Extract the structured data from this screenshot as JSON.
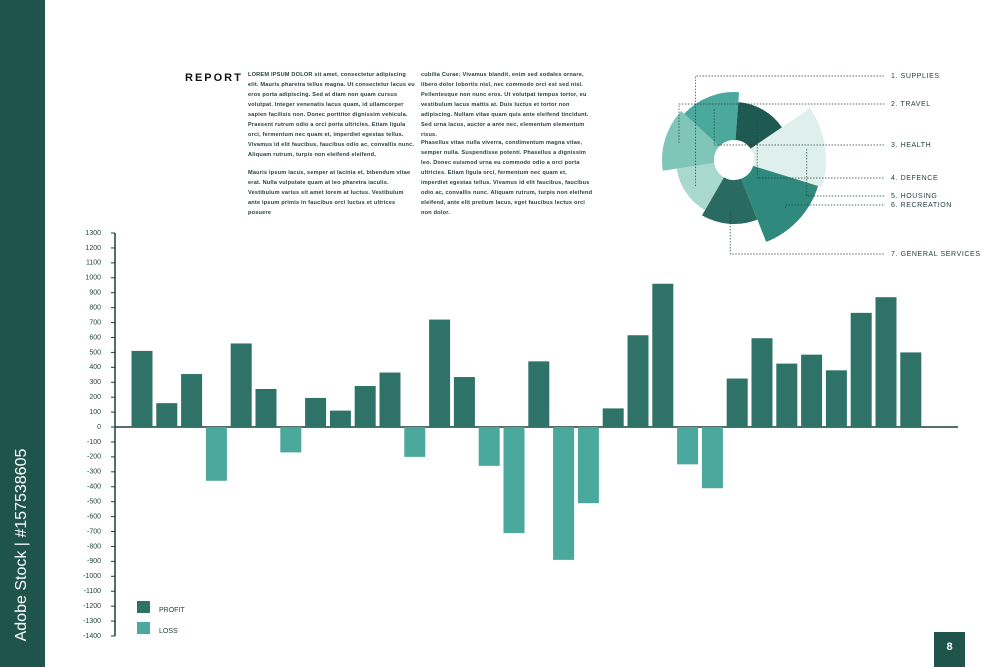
{
  "sidebar_text": "Adobe Stock | #157538605",
  "page_number": "8",
  "report": {
    "title": "REPORT",
    "paragraphs": [
      "LOREM IPSUM DOLOR sit amet, consectetur adipiscing elit. Mauris pharetra tellus magna. Ut consectetur lacus eu eros porta adipiscing. Sed at diam non quam cursus volutpat. Integer venenatis lacus quam, id ullamcorper sapien facilisis non. Donec porttitor dignissim vehicula. Praesent rutrum odio a orci porta ultricies. Etiam ligula orci, fermentum nec quam et, imperdiet egestas tellus. Vivamus id elit faucibus, faucibus odio ac, convallis nunc. Aliquam rutrum, turpis non eleifend eleifend,",
      "Mauris ipsum lacus, semper at lacinia et, bibendum vitae erat. Nulla vulputate quam at leo pharetra iaculis. Vestibulum varius sit amet lorem at luctus. Vestibulum ante ipsum primis in faucibus orci luctus et ultrices posuere",
      "cubilia Curae; Vivamus blandit, enim sed sodales ornare, libero dolor lobortis nisl, nec commodo orci est sed nisl. Pellentesque non nunc eros. Ut volutpat tempus tortor, eu vestibulum lacus mattis at. Duis luctus et tortor non adipiscing. Nullam vitae quam quis ante eleifend tincidunt. Sed urna lacus, auctor a ante nec, elementum elementum risus.",
      "Phasellus vitae nulla viverra, condimentum magna vitae, semper nulla. Suspendisse potenti. Phasellus a dignissim leo. Donec euismod urna eu commodo odio a orci porta ultricies. Etiam ligula orci, fermentum nec quam et, imperdiet egestas tellus. Vivamus id elit faucibus, faucibus odio ac, convallis nunc. Aliquam rutrum, turpis non eleifend eleifend, ante elit pretium lacus, eget faucibus lectus orci non dolor."
    ]
  },
  "chart_data": [
    {
      "type": "bar",
      "categories": [
        null,
        null,
        null,
        null,
        null,
        null,
        null,
        null,
        null,
        null,
        null,
        null,
        null,
        null,
        null,
        null,
        null,
        null,
        null,
        null,
        null,
        null,
        null,
        null,
        null,
        null,
        null,
        null,
        null,
        null,
        null,
        null
      ],
      "series": [
        {
          "name": "PROFIT",
          "color": "#2f7268",
          "values": [
            510,
            160,
            355,
            null,
            560,
            255,
            null,
            195,
            110,
            275,
            365,
            null,
            720,
            335,
            null,
            null,
            440,
            null,
            null,
            125,
            615,
            960,
            null,
            null,
            325,
            595,
            425,
            485,
            380,
            765,
            870,
            500
          ]
        },
        {
          "name": "LOSS",
          "color": "#4aa89c",
          "values": [
            null,
            null,
            null,
            -360,
            null,
            null,
            -170,
            null,
            null,
            null,
            null,
            -200,
            null,
            null,
            -260,
            -710,
            null,
            -890,
            -510,
            null,
            null,
            null,
            -250,
            -410,
            null,
            null,
            null,
            null,
            null,
            null,
            null,
            null
          ]
        }
      ],
      "ylim": [
        -1400,
        1300
      ],
      "yticks": [
        -1400,
        -1300,
        -1200,
        -1100,
        -1000,
        -900,
        -800,
        -700,
        -600,
        -500,
        -400,
        -300,
        -200,
        -100,
        0,
        100,
        200,
        300,
        400,
        500,
        600,
        700,
        800,
        900,
        1000,
        1100,
        1200,
        1300
      ]
    },
    {
      "type": "rose",
      "categories": [
        "1. SUPPLIES",
        "2. TRAVEL",
        "3. HEALTH",
        "4. DEFENCE",
        "5. HOUSING",
        "6. RECREATION",
        "7. GENERAL SERVICES"
      ],
      "values": [
        58,
        72,
        68,
        58,
        92,
        88,
        64
      ],
      "colors": [
        "#a9d8cf",
        "#7fc6b8",
        "#4aa89c",
        "#1f5a52",
        "#dff0ec",
        "#2f8a7d",
        "#2a6b61"
      ]
    }
  ]
}
